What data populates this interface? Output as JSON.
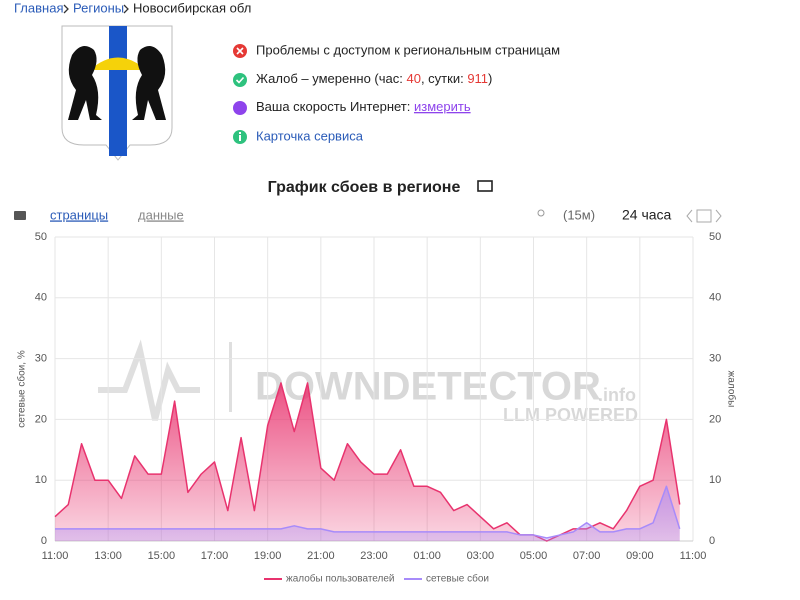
{
  "breadcrumbs": [
    "Главная",
    "Регионы",
    "Новосибирская обл"
  ],
  "status": {
    "access": "Проблемы с доступом к региональным страницам",
    "complaints": {
      "text": "Жалоб – умеренно (час: ",
      "hour": 40,
      "mid": ", сутки: ",
      "day": 911,
      "end": ")"
    },
    "speed": {
      "text": "Ваша скорость Интернет: ",
      "link": "измерить"
    },
    "card": "Карточка сервиса"
  },
  "chart_data": {
    "type": "area",
    "title": "График сбоев в регионе",
    "tabs": [
      "страницы",
      "данные"
    ],
    "interval": "(15м)",
    "range": "24 часа",
    "ylabel": "сетевые сбои, %",
    "y2label": "жалобы",
    "watermark": {
      "brand": "DOWNDETECTOR",
      "suffix": ".info",
      "tagline": "LLM POWERED"
    },
    "x": [
      0,
      0.5,
      1,
      1.5,
      2,
      2.5,
      3,
      3.5,
      4,
      4.5,
      5,
      5.5,
      6,
      6.5,
      7,
      7.5,
      8,
      8.5,
      9,
      9.5,
      10,
      10.5,
      11,
      11.5,
      12,
      12.5,
      13,
      13.5,
      14,
      14.5,
      15,
      15.5,
      16,
      16.5,
      17,
      17.5,
      18,
      18.5,
      19,
      19.5,
      20,
      20.5,
      21,
      21.5,
      22,
      22.5,
      23,
      23.5
    ],
    "series": [
      {
        "name": "жалобы пользователей",
        "color": "#e8336e",
        "axis": "y2",
        "values": [
          4,
          6,
          16,
          10,
          10,
          7,
          14,
          11,
          11,
          23,
          8,
          11,
          13,
          5,
          17,
          5,
          19,
          26,
          18,
          26,
          12,
          10,
          16,
          13,
          11,
          11,
          15,
          9,
          9,
          8,
          5,
          6,
          4,
          2,
          3,
          1,
          1,
          0,
          1,
          2,
          2,
          3,
          2,
          5,
          9,
          10,
          20,
          6
        ]
      },
      {
        "name": "сетевые сбои",
        "color": "#a78bfa",
        "values": [
          2,
          2,
          2,
          2,
          2,
          2,
          2,
          2,
          2,
          2,
          2,
          2,
          2,
          2,
          2,
          2,
          2,
          2,
          2.5,
          2,
          2,
          1.5,
          1.5,
          1.5,
          1.5,
          1.5,
          1.5,
          1.5,
          1.5,
          1.5,
          1.5,
          1.5,
          1.5,
          1.5,
          1.5,
          1,
          1,
          0.5,
          1,
          1.5,
          3,
          1.5,
          1.5,
          2,
          2,
          3,
          9,
          2
        ]
      }
    ],
    "xlim": [
      0,
      24
    ],
    "xticks": [
      {
        "value": 0,
        "label": "11:00"
      },
      {
        "value": 2,
        "label": "13:00"
      },
      {
        "value": 4,
        "label": "15:00"
      },
      {
        "value": 6,
        "label": "17:00"
      },
      {
        "value": 8,
        "label": "19:00"
      },
      {
        "value": 10,
        "label": "21:00"
      },
      {
        "value": 12,
        "label": "23:00"
      },
      {
        "value": 14,
        "label": "01:00"
      },
      {
        "value": 16,
        "label": "03:00"
      },
      {
        "value": 18,
        "label": "05:00"
      },
      {
        "value": 20,
        "label": "07:00"
      },
      {
        "value": 22,
        "label": "09:00"
      },
      {
        "value": 24,
        "label": "11:00"
      }
    ],
    "ylim": [
      0,
      50
    ],
    "yticks": [
      0,
      10,
      20,
      30,
      40,
      50
    ],
    "y2lim": [
      0,
      50
    ],
    "y2ticks": [
      0,
      10,
      20,
      30,
      40,
      50
    ],
    "grid": true
  }
}
